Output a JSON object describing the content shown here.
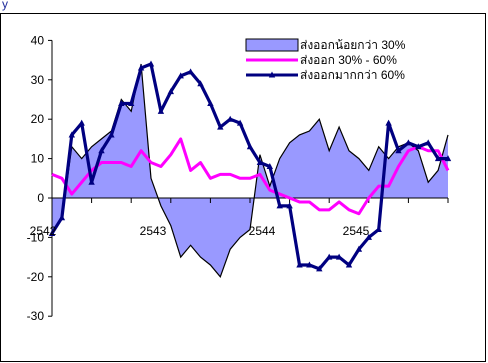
{
  "header_fragment": "y",
  "chart_data": {
    "type": "line",
    "x_tick_labels": [
      "2542",
      "2543",
      "2544",
      "2545"
    ],
    "y_tick_labels": [
      "40",
      "30",
      "20",
      "10",
      "0",
      "-10",
      "-20",
      "-30"
    ],
    "ylim": [
      -30,
      40
    ],
    "legend_position": "top-right",
    "series": [
      {
        "name": "ส่งออกน้อยกว่า 30%",
        "render": "area",
        "fill": "#9999ff",
        "stroke": "#000000",
        "values": [
          -9,
          -5,
          13,
          10,
          13,
          15,
          17,
          25,
          22,
          34,
          5,
          -2,
          -7,
          -15,
          -12,
          -15,
          -17,
          -20,
          -13,
          -10,
          -8,
          11,
          3,
          10,
          14,
          16,
          17,
          20,
          12,
          18,
          12,
          10,
          7,
          13,
          10,
          13,
          14,
          12,
          4,
          7,
          16
        ]
      },
      {
        "name": "ส่งออก 30% - 60%",
        "render": "line",
        "stroke": "#ff00ff",
        "values": [
          6,
          5,
          1,
          4,
          7,
          9,
          9,
          9,
          8,
          12,
          9,
          8,
          11,
          15,
          7,
          9,
          5,
          6,
          6,
          5,
          5,
          6,
          2,
          1,
          0,
          -1,
          -1,
          -3,
          -3,
          -1,
          -3,
          -4,
          0,
          3,
          3,
          8,
          12,
          13,
          12,
          12,
          7
        ]
      },
      {
        "name": "ส่งออกมากกว่า 60%",
        "render": "line-markers",
        "stroke": "#000080",
        "values": [
          -9,
          -5,
          16,
          19,
          4,
          12,
          16,
          24,
          24,
          33,
          34,
          22,
          27,
          31,
          32,
          29,
          24,
          18,
          20,
          19,
          13,
          9,
          8,
          -2,
          -2,
          -17,
          -17,
          -18,
          -15,
          -15,
          -17,
          -13,
          -10,
          -8,
          19,
          12,
          14,
          13,
          14,
          10,
          10
        ]
      }
    ]
  }
}
